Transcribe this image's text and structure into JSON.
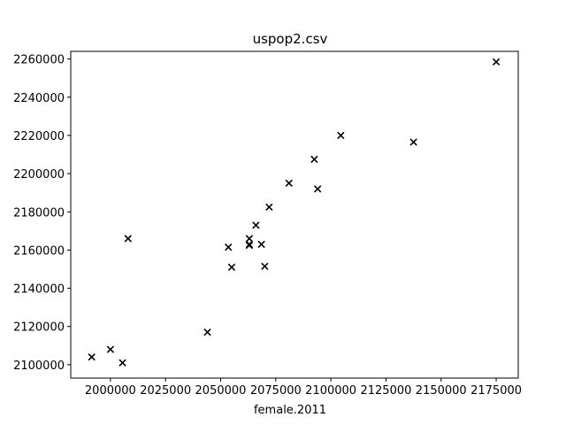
{
  "chart_data": {
    "type": "scatter",
    "title": "uspop2.csv",
    "xlabel": "female.2011",
    "ylabel": "",
    "marker": "x",
    "marker_color": "#000000",
    "grid": false,
    "xlim": [
      1982000,
      2185000
    ],
    "ylim": [
      2093000,
      2264000
    ],
    "x_ticks": [
      2000000,
      2025000,
      2050000,
      2075000,
      2100000,
      2125000,
      2150000,
      2175000
    ],
    "x_tick_labels": [
      "2000000",
      "2025000",
      "2050000",
      "2075000",
      "2100000",
      "2125000",
      "2150000",
      "2175000"
    ],
    "y_ticks": [
      2100000,
      2120000,
      2140000,
      2160000,
      2180000,
      2200000,
      2220000,
      2240000,
      2260000
    ],
    "y_tick_labels": [
      "2100000",
      "2120000",
      "2140000",
      "2160000",
      "2180000",
      "2200000",
      "2220000",
      "2240000",
      "2260000"
    ],
    "points": [
      {
        "x": 1991500,
        "y": 2104000
      },
      {
        "x": 2000000,
        "y": 2108000
      },
      {
        "x": 2005500,
        "y": 2101000
      },
      {
        "x": 2008000,
        "y": 2166000
      },
      {
        "x": 2044000,
        "y": 2117000
      },
      {
        "x": 2053500,
        "y": 2161500
      },
      {
        "x": 2055000,
        "y": 2151000
      },
      {
        "x": 2063000,
        "y": 2163000
      },
      {
        "x": 2063000,
        "y": 2166000
      },
      {
        "x": 2063000,
        "y": 2162500
      },
      {
        "x": 2066000,
        "y": 2173000
      },
      {
        "x": 2068500,
        "y": 2163000
      },
      {
        "x": 2070000,
        "y": 2151500
      },
      {
        "x": 2072000,
        "y": 2182500
      },
      {
        "x": 2081000,
        "y": 2195000
      },
      {
        "x": 2092500,
        "y": 2207500
      },
      {
        "x": 2094000,
        "y": 2192000
      },
      {
        "x": 2104500,
        "y": 2220000
      },
      {
        "x": 2137500,
        "y": 2216500
      },
      {
        "x": 2175000,
        "y": 2258500
      }
    ]
  }
}
